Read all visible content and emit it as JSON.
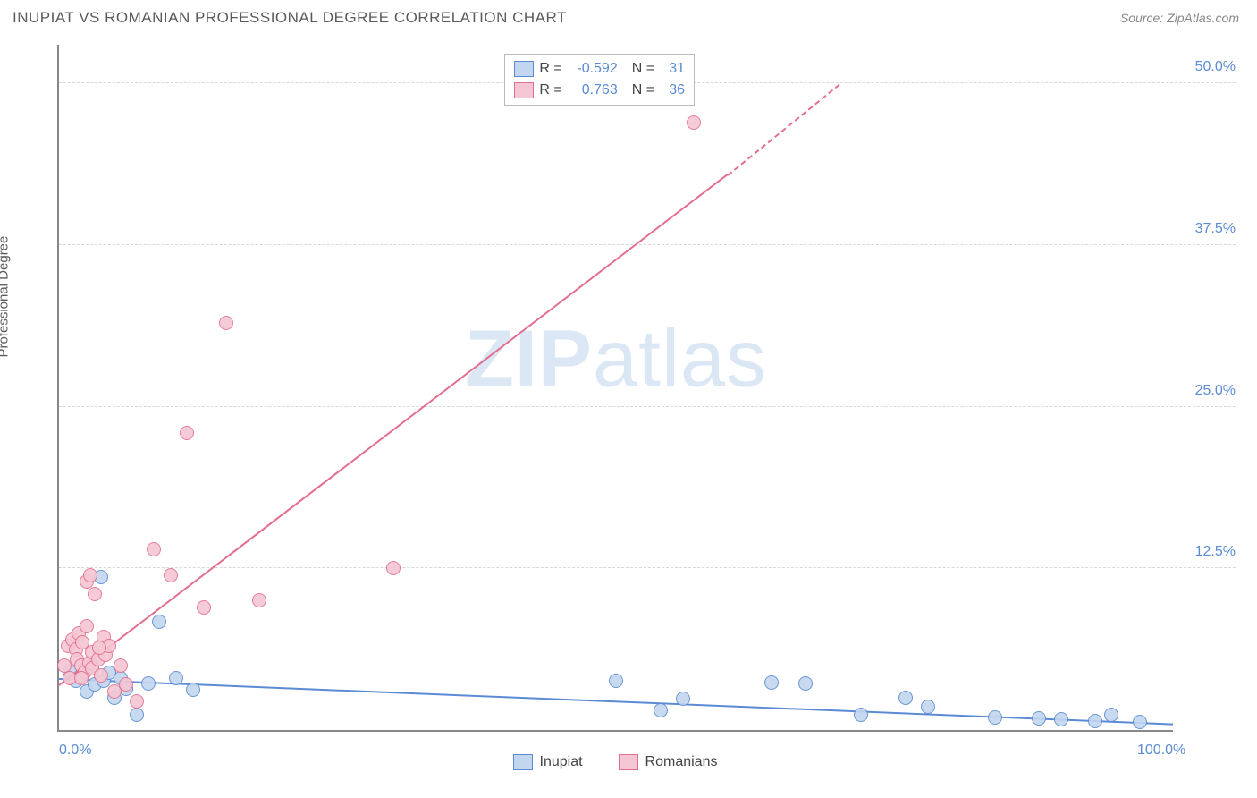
{
  "header": {
    "title": "INUPIAT VS ROMANIAN PROFESSIONAL DEGREE CORRELATION CHART",
    "source": "Source: ZipAtlas.com"
  },
  "watermark": {
    "text_bold": "ZIP",
    "text_rest": "atlas"
  },
  "ylabel": "Professional Degree",
  "chart": {
    "type": "scatter",
    "xlim": [
      0,
      100
    ],
    "ylim": [
      0,
      53
    ],
    "x_ticks": [
      {
        "value": 0,
        "label": "0.0%"
      },
      {
        "value": 100,
        "label": "100.0%"
      }
    ],
    "y_ticks": [
      {
        "value": 12.5,
        "label": "12.5%"
      },
      {
        "value": 25.0,
        "label": "25.0%"
      },
      {
        "value": 37.5,
        "label": "37.5%"
      },
      {
        "value": 50.0,
        "label": "50.0%"
      }
    ],
    "background_color": "#ffffff",
    "grid_color": "#d8d8d8",
    "axis_color": "#888888",
    "tick_label_color": "#5b8bd4",
    "marker_radius": 8,
    "marker_border_width": 1.5,
    "marker_fill_opacity": 0.35
  },
  "series": [
    {
      "id": "inupiat",
      "label": "Inupiat",
      "color": "#5b8bd4",
      "fill": "#c3d6ef",
      "R": "-0.592",
      "N": "31",
      "trend": {
        "x1": 0,
        "y1": 4.0,
        "x2": 100,
        "y2": 0.5,
        "width": 2
      },
      "points": [
        [
          1.0,
          4.5
        ],
        [
          1.5,
          3.8
        ],
        [
          2.0,
          4.2
        ],
        [
          2.5,
          3.0
        ],
        [
          3.0,
          5.0
        ],
        [
          3.2,
          3.5
        ],
        [
          3.8,
          11.8
        ],
        [
          4.0,
          3.8
        ],
        [
          4.5,
          4.4
        ],
        [
          5.0,
          2.5
        ],
        [
          5.5,
          4.0
        ],
        [
          6.0,
          3.2
        ],
        [
          7.0,
          1.2
        ],
        [
          8.0,
          3.6
        ],
        [
          9.0,
          8.4
        ],
        [
          10.5,
          4.0
        ],
        [
          12.0,
          3.1
        ],
        [
          50.0,
          3.8
        ],
        [
          54.0,
          1.5
        ],
        [
          56.0,
          2.4
        ],
        [
          64.0,
          3.7
        ],
        [
          67.0,
          3.6
        ],
        [
          72.0,
          1.2
        ],
        [
          76.0,
          2.5
        ],
        [
          78.0,
          1.8
        ],
        [
          84.0,
          1.0
        ],
        [
          88.0,
          0.9
        ],
        [
          90.0,
          0.8
        ],
        [
          93.0,
          0.7
        ],
        [
          94.5,
          1.2
        ],
        [
          97.0,
          0.6
        ]
      ]
    },
    {
      "id": "romanians",
      "label": "Romanians",
      "color": "#e36f8f",
      "fill": "#f5c6d3",
      "R": "0.763",
      "N": "36",
      "trend": {
        "x1": 0,
        "y1": 3.5,
        "x2_solid": 60,
        "y2_solid": 43,
        "x2_dash": 70,
        "y2_dash": 50,
        "width": 2
      },
      "points": [
        [
          0.5,
          5.0
        ],
        [
          0.8,
          6.5
        ],
        [
          1.0,
          4.0
        ],
        [
          1.2,
          7.0
        ],
        [
          1.5,
          6.2
        ],
        [
          1.6,
          5.5
        ],
        [
          1.8,
          7.5
        ],
        [
          2.0,
          5.0
        ],
        [
          2.1,
          6.8
        ],
        [
          2.3,
          4.5
        ],
        [
          2.5,
          8.0
        ],
        [
          2.5,
          11.5
        ],
        [
          2.7,
          5.2
        ],
        [
          2.8,
          12.0
        ],
        [
          3.0,
          4.8
        ],
        [
          3.0,
          6.0
        ],
        [
          3.2,
          10.5
        ],
        [
          3.5,
          5.5
        ],
        [
          3.8,
          4.2
        ],
        [
          4.0,
          7.2
        ],
        [
          4.2,
          5.8
        ],
        [
          4.5,
          6.5
        ],
        [
          5.0,
          3.0
        ],
        [
          5.5,
          5.0
        ],
        [
          6.0,
          3.5
        ],
        [
          7.0,
          2.2
        ],
        [
          8.5,
          14.0
        ],
        [
          10.0,
          12.0
        ],
        [
          11.5,
          23.0
        ],
        [
          13.0,
          9.5
        ],
        [
          15.0,
          31.5
        ],
        [
          18.0,
          10.0
        ],
        [
          30.0,
          12.5
        ],
        [
          57.0,
          47.0
        ],
        [
          2.0,
          4.0
        ],
        [
          3.6,
          6.4
        ]
      ]
    }
  ],
  "legend_top": {
    "rows": [
      {
        "series_idx": 0
      },
      {
        "series_idx": 1
      }
    ],
    "label_R": "R =",
    "label_N": "N ="
  },
  "legend_bottom": {
    "items": [
      {
        "series_idx": 0
      },
      {
        "series_idx": 1
      }
    ]
  }
}
